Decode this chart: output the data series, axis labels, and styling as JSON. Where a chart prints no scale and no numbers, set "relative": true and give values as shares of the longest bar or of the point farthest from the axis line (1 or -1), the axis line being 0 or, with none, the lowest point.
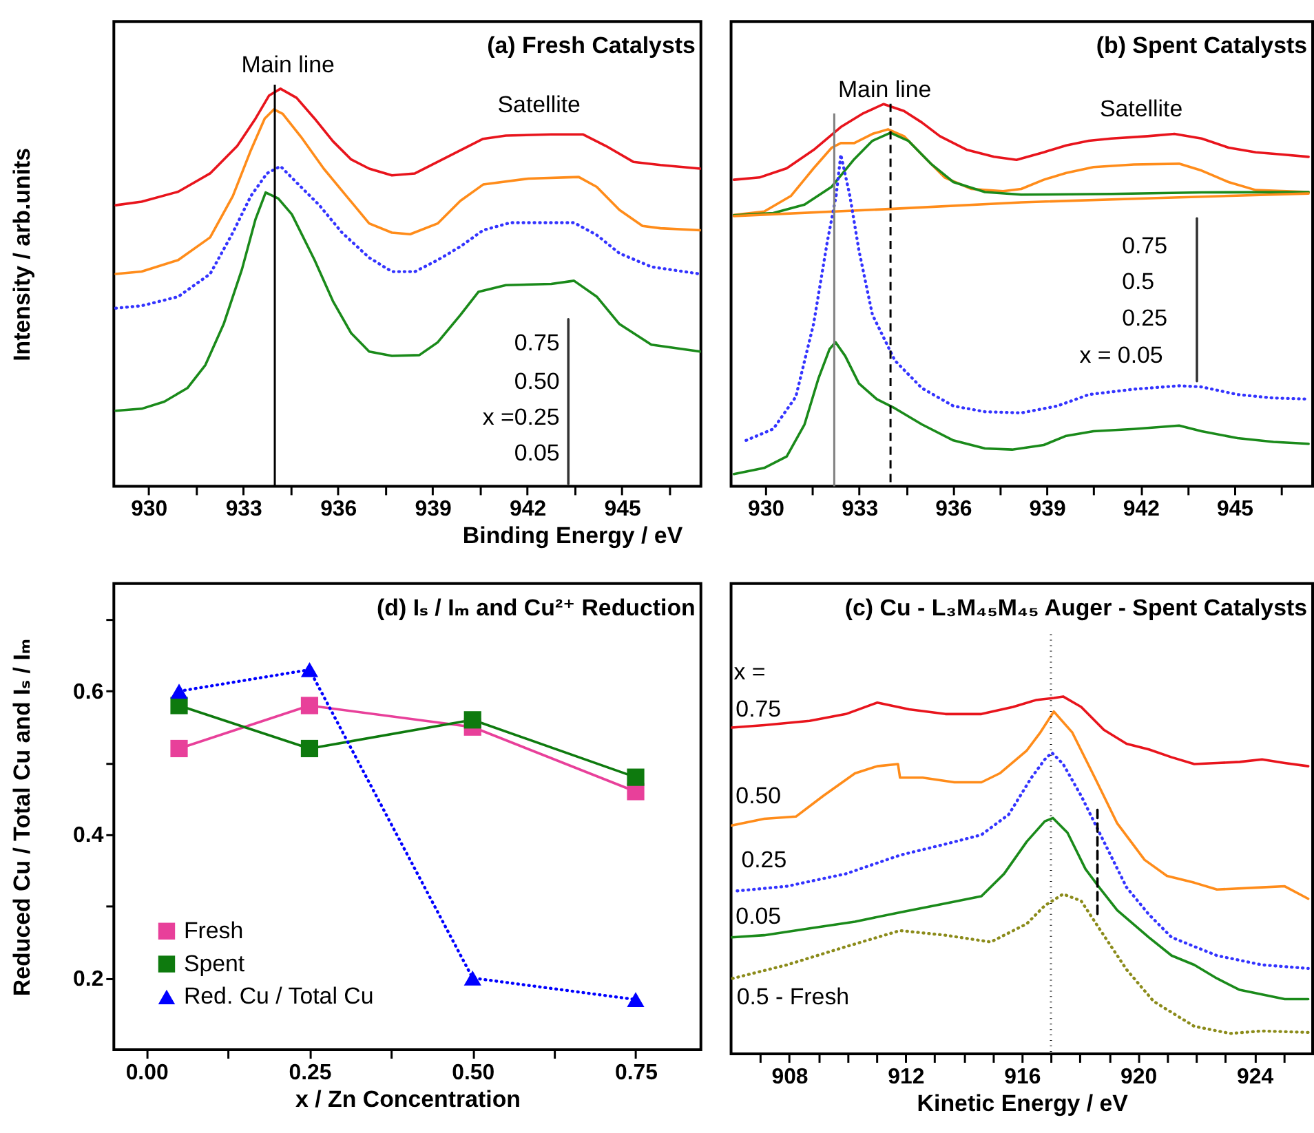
{
  "chart_data": [
    {
      "type": "line",
      "title": "(a) Fresh Catalysts",
      "xlabel": "Binding Energy / eV",
      "ylabel": "Intensity / arb.units",
      "relative": true,
      "xlim": [
        928.9,
        947.5
      ],
      "xticks": [
        930,
        {
          "value": 931.5,
          "label": null
        },
        933,
        {
          "value": 934.5,
          "label": null
        },
        936,
        {
          "value": 937.5,
          "label": null
        },
        939,
        {
          "value": 940.5,
          "label": null
        },
        942,
        {
          "value": 943.5,
          "label": null
        },
        945,
        {
          "value": 946.5,
          "label": null
        }
      ],
      "annotations": [
        "Main line",
        "Satellite",
        "0.75",
        "0.50",
        "x =0.25",
        "0.05"
      ],
      "ref_lines": [
        {
          "axis": "x",
          "value": 934,
          "color": "#000000",
          "line_style": "solid"
        }
      ],
      "series": [
        {
          "color": "#e8141c",
          "x": [
            928.96,
            929.78,
            930.94,
            931.95,
            932.81,
            933.39,
            933.82,
            934.18,
            934.69,
            935.26,
            935.84,
            936.42,
            936.99,
            937.71,
            938.44,
            939.16,
            939.88,
            940.6,
            941.32,
            942.76,
            943.77,
            944.49,
            945.36,
            946.22,
            947.48
          ],
          "values": [
            0.707,
            0.716,
            0.741,
            0.787,
            0.856,
            0.925,
            0.983,
            1.0,
            0.977,
            0.925,
            0.868,
            0.822,
            0.799,
            0.782,
            0.787,
            0.816,
            0.845,
            0.874,
            0.882,
            0.885,
            0.885,
            0.856,
            0.816,
            0.808,
            0.799
          ]
        },
        {
          "color": "#ff8c1a",
          "x": [
            928.96,
            929.78,
            930.94,
            931.95,
            932.67,
            933.24,
            933.68,
            933.97,
            934.25,
            934.83,
            935.55,
            936.27,
            936.99,
            937.71,
            938.29,
            939.16,
            939.88,
            940.6,
            942.04,
            943.63,
            944.2,
            944.92,
            945.65,
            946.22,
            947.48
          ],
          "values": [
            0.534,
            0.54,
            0.569,
            0.626,
            0.73,
            0.845,
            0.925,
            0.948,
            0.937,
            0.879,
            0.799,
            0.73,
            0.661,
            0.638,
            0.634,
            0.661,
            0.718,
            0.759,
            0.774,
            0.778,
            0.753,
            0.695,
            0.655,
            0.649,
            0.644
          ]
        },
        {
          "color": "#3333ff",
          "line_style": "dotted",
          "x": [
            928.96,
            929.78,
            930.94,
            931.95,
            932.67,
            933.24,
            933.75,
            934.18,
            934.69,
            935.41,
            936.13,
            936.99,
            937.71,
            938.44,
            939.16,
            939.88,
            940.6,
            941.46,
            943.48,
            944.2,
            944.92,
            945.93,
            947.48
          ],
          "values": [
            0.448,
            0.454,
            0.477,
            0.534,
            0.638,
            0.73,
            0.787,
            0.805,
            0.764,
            0.707,
            0.638,
            0.575,
            0.54,
            0.54,
            0.569,
            0.603,
            0.644,
            0.663,
            0.663,
            0.632,
            0.586,
            0.552,
            0.534
          ]
        },
        {
          "color": "#1a8a1a",
          "x": [
            928.96,
            929.78,
            930.5,
            931.23,
            931.8,
            932.38,
            932.96,
            933.39,
            933.71,
            934.11,
            934.54,
            935.26,
            935.84,
            936.42,
            936.99,
            937.71,
            938.58,
            939.16,
            939.88,
            940.45,
            941.32,
            942.76,
            943.48,
            944.2,
            944.92,
            945.93,
            947.48
          ],
          "values": [
            0.19,
            0.195,
            0.213,
            0.247,
            0.305,
            0.408,
            0.546,
            0.672,
            0.739,
            0.724,
            0.684,
            0.569,
            0.466,
            0.385,
            0.339,
            0.328,
            0.33,
            0.362,
            0.431,
            0.489,
            0.506,
            0.509,
            0.517,
            0.477,
            0.408,
            0.356,
            0.339
          ]
        },
        {
          "color": "#333333",
          "x": [
            943.3,
            943.3
          ],
          "values": [
            0.006,
            0.42
          ]
        }
      ]
    },
    {
      "type": "line",
      "title": "(b) Spent Catalysts",
      "relative": true,
      "xlim": [
        928.9,
        947.5
      ],
      "xticks": [
        930,
        {
          "value": 931.5,
          "label": null
        },
        933,
        {
          "value": 934.5,
          "label": null
        },
        936,
        {
          "value": 937.5,
          "label": null
        },
        939,
        {
          "value": 940.5,
          "label": null
        },
        942,
        {
          "value": 943.5,
          "label": null
        },
        945,
        {
          "value": 946.5,
          "label": null
        }
      ],
      "annotations": [
        "Main line",
        "Satellite",
        "0.75",
        "0.5",
        "0.25",
        "x = 0.05"
      ],
      "ref_lines": [
        {
          "axis": "x",
          "value": 932.2,
          "color": "#808080",
          "line_style": "solid"
        },
        {
          "axis": "x",
          "value": 934,
          "color": "#000000",
          "line_style": "dashed"
        }
      ],
      "series": [
        {
          "color": "#e8141c",
          "x": [
            928.99,
            929.81,
            930.68,
            931.54,
            932.41,
            933.13,
            933.78,
            934.43,
            935.0,
            935.58,
            936.45,
            937.31,
            938.03,
            938.9,
            939.62,
            940.34,
            941.06,
            942.22,
            943.08,
            943.95,
            944.81,
            945.68,
            946.54,
            947.37
          ],
          "values": [
            0.802,
            0.808,
            0.832,
            0.88,
            0.94,
            0.976,
            1.0,
            0.982,
            0.952,
            0.916,
            0.88,
            0.862,
            0.854,
            0.874,
            0.892,
            0.904,
            0.91,
            0.916,
            0.922,
            0.91,
            0.886,
            0.874,
            0.868,
            0.862
          ]
        },
        {
          "color": "#ff8c1a",
          "x": [
            928.99,
            929.96,
            930.82,
            931.54,
            932.12,
            932.41,
            932.84,
            933.42,
            933.92,
            934.43,
            935.0,
            935.73,
            936.59,
            937.6,
            938.18,
            938.9,
            939.62,
            940.49,
            941.78,
            943.23,
            943.95,
            944.81,
            945.68,
            947.37
          ],
          "values": [
            0.71,
            0.719,
            0.76,
            0.832,
            0.886,
            0.898,
            0.898,
            0.922,
            0.934,
            0.916,
            0.868,
            0.808,
            0.778,
            0.772,
            0.778,
            0.802,
            0.82,
            0.835,
            0.842,
            0.844,
            0.826,
            0.796,
            0.775,
            0.77
          ]
        },
        {
          "color": "#1a8a1a",
          "x": [
            928.99,
            930.25,
            931.25,
            932.12,
            932.84,
            933.42,
            934.0,
            934.57,
            935.29,
            936.01,
            937.02,
            938.18,
            941.06,
            943.95,
            947.37
          ],
          "values": [
            0.709,
            0.715,
            0.737,
            0.784,
            0.856,
            0.904,
            0.925,
            0.904,
            0.844,
            0.796,
            0.77,
            0.763,
            0.765,
            0.769,
            0.77
          ]
        },
        {
          "color": "#ff8c1a",
          "x": [
            928.99,
            933.85,
            938.18,
            942.5,
            947.37
          ],
          "values": [
            0.707,
            0.725,
            0.743,
            0.754,
            0.766
          ]
        },
        {
          "color": "#3333ff",
          "line_style": "dotted",
          "x": [
            929.38,
            930.25,
            930.97,
            931.54,
            931.98,
            932.26,
            932.41,
            932.7,
            932.99,
            933.42,
            934.14,
            935.0,
            936.01,
            937.02,
            938.18,
            939.33,
            940.34,
            941.78,
            943.23,
            943.95,
            945.1,
            946.25,
            947.37
          ],
          "values": [
            0.12,
            0.15,
            0.234,
            0.425,
            0.641,
            0.76,
            0.868,
            0.76,
            0.617,
            0.449,
            0.329,
            0.257,
            0.21,
            0.195,
            0.192,
            0.21,
            0.24,
            0.254,
            0.263,
            0.26,
            0.24,
            0.231,
            0.228
          ]
        },
        {
          "color": "#1a8a1a",
          "x": [
            928.99,
            929.96,
            930.68,
            931.25,
            931.69,
            932.05,
            932.24,
            932.55,
            932.99,
            933.56,
            934.14,
            935.0,
            936.01,
            937.02,
            937.89,
            938.9,
            939.62,
            940.49,
            941.78,
            943.23,
            943.95,
            945.1,
            946.25,
            947.37
          ],
          "values": [
            0.032,
            0.048,
            0.078,
            0.162,
            0.281,
            0.359,
            0.377,
            0.341,
            0.269,
            0.228,
            0.204,
            0.162,
            0.12,
            0.099,
            0.096,
            0.108,
            0.132,
            0.144,
            0.15,
            0.159,
            0.144,
            0.126,
            0.116,
            0.111
          ]
        },
        {
          "color": "#333333",
          "x": [
            943.8,
            943.8
          ],
          "values": [
            0.275,
            0.701
          ]
        }
      ]
    },
    {
      "type": "line",
      "title": "(d) Iₛ / Iₘ and Cu²⁺ Reduction",
      "xlabel": "x / Zn Concentration",
      "ylabel": "Reduced Cu / Total Cu and Iₛ / Iₘ",
      "legend": "bottom left",
      "xlim": [
        -0.05,
        0.85
      ],
      "ylim": [
        0.1,
        0.75
      ],
      "xticks": [
        {
          "value": 0,
          "label": "0.00"
        },
        {
          "value": 0.125,
          "label": null
        },
        0.25,
        {
          "value": 0.375,
          "label": null
        },
        {
          "value": 0.5,
          "label": "0.50"
        },
        {
          "value": 0.625,
          "label": null
        },
        0.75
      ],
      "yticks": [
        0.2,
        {
          "value": 0.3,
          "label": null
        },
        0.4,
        {
          "value": 0.5,
          "label": null
        },
        0.6,
        {
          "value": 0.7,
          "label": null
        }
      ],
      "x": [
        0.05,
        0.25,
        0.5,
        0.75
      ],
      "series": [
        {
          "name": "Fresh",
          "color": "#e8409a",
          "marker": "square",
          "values": [
            0.52,
            0.58,
            0.55,
            0.46
          ]
        },
        {
          "name": "Spent",
          "color": "#0e7a0e",
          "marker": "square",
          "values": [
            0.58,
            0.52,
            0.56,
            0.48
          ]
        },
        {
          "name": "Red. Cu / Total Cu",
          "color": "#0000ff",
          "marker": "triangle",
          "line_style": "dotted",
          "values": [
            0.6,
            0.63,
            0.2,
            0.17
          ]
        }
      ]
    },
    {
      "type": "line",
      "title": "(c) Cu - L₃M₄₅M₄₅ Auger - Spent Catalysts",
      "xlabel": "Kinetic Energy / eV",
      "relative": true,
      "xlim": [
        906,
        926
      ],
      "xticks": [
        {
          "value": 907,
          "label": null
        },
        908,
        {
          "value": 909,
          "label": null
        },
        {
          "value": 910,
          "label": null
        },
        {
          "value": 911,
          "label": null
        },
        912,
        {
          "value": 913,
          "label": null
        },
        {
          "value": 914,
          "label": null
        },
        {
          "value": 915,
          "label": null
        },
        916,
        {
          "value": 917,
          "label": null
        },
        {
          "value": 918,
          "label": null
        },
        {
          "value": 919,
          "label": null
        },
        920,
        {
          "value": 921,
          "label": null
        },
        {
          "value": 922,
          "label": null
        },
        {
          "value": 923,
          "label": null
        },
        924,
        {
          "value": 925,
          "label": null
        }
      ],
      "annotations": [
        "x ="
      ],
      "ref_lines": [
        {
          "axis": "x",
          "value": 917,
          "color": "#000000",
          "line_style": "dotted"
        }
      ],
      "series": [
        {
          "name": "0.75",
          "color": "#e8141c",
          "x": [
            906.02,
            907.14,
            908.7,
            909.95,
            911.03,
            912.12,
            913.37,
            914.61,
            915.7,
            916.48,
            917.1,
            917.42,
            918.04,
            918.82,
            919.6,
            920.37,
            921.15,
            921.93,
            922.71,
            923.49,
            924.26,
            925.04,
            925.85
          ],
          "values": [
            0.913,
            0.92,
            0.932,
            0.951,
            0.983,
            0.964,
            0.951,
            0.951,
            0.971,
            0.99,
            0.996,
            1.0,
            0.971,
            0.907,
            0.868,
            0.852,
            0.83,
            0.811,
            0.814,
            0.817,
            0.824,
            0.814,
            0.805
          ]
        },
        {
          "name": "0.50",
          "color": "#ff8c1a",
          "x": [
            906.02,
            907.14,
            908.23,
            909.17,
            910.26,
            911.03,
            911.74,
            911.81,
            912.59,
            913.68,
            914.61,
            915.24,
            916.17,
            916.64,
            917.1,
            917.73,
            918.51,
            919.28,
            920.22,
            920.99,
            921.93,
            922.71,
            924.26,
            925.04,
            925.85
          ],
          "values": [
            0.639,
            0.658,
            0.664,
            0.722,
            0.785,
            0.805,
            0.811,
            0.773,
            0.773,
            0.76,
            0.76,
            0.785,
            0.849,
            0.9,
            0.958,
            0.9,
            0.773,
            0.645,
            0.543,
            0.498,
            0.479,
            0.46,
            0.466,
            0.469,
            0.434
          ]
        },
        {
          "name": "0.25",
          "color": "#3333ff",
          "line_style": "dotted",
          "x": [
            906.21,
            907.92,
            909.95,
            911.81,
            913.37,
            914.61,
            915.55,
            916.33,
            916.79,
            917.03,
            917.42,
            918.04,
            918.82,
            919.6,
            920.37,
            921.15,
            922.71,
            924.26,
            925.85
          ],
          "values": [
            0.456,
            0.469,
            0.504,
            0.556,
            0.587,
            0.613,
            0.67,
            0.773,
            0.824,
            0.843,
            0.811,
            0.722,
            0.594,
            0.466,
            0.39,
            0.326,
            0.275,
            0.249,
            0.239
          ]
        },
        {
          "name": "0.05",
          "color": "#1a8a1a",
          "x": [
            906.02,
            907.14,
            908.7,
            910.26,
            911.81,
            913.37,
            914.61,
            915.39,
            916.17,
            916.79,
            917.07,
            917.57,
            918.19,
            918.66,
            919.28,
            920.37,
            921.15,
            921.93,
            922.71,
            923.49,
            925.04,
            925.85
          ],
          "values": [
            0.326,
            0.332,
            0.351,
            0.37,
            0.396,
            0.421,
            0.441,
            0.504,
            0.594,
            0.651,
            0.66,
            0.619,
            0.517,
            0.466,
            0.402,
            0.326,
            0.275,
            0.249,
            0.211,
            0.179,
            0.153,
            0.153
          ]
        },
        {
          "name": "0.5 - Fresh",
          "color": "#8b8b1a",
          "line_style": "dotted",
          "x": [
            906.05,
            907.92,
            909.95,
            911.81,
            913.37,
            914.93,
            916.17,
            916.79,
            917.42,
            918.04,
            918.66,
            919.6,
            920.53,
            921.93,
            923.17,
            924.26,
            925.85
          ],
          "values": [
            0.211,
            0.249,
            0.3,
            0.345,
            0.332,
            0.313,
            0.364,
            0.415,
            0.447,
            0.428,
            0.351,
            0.236,
            0.147,
            0.077,
            0.057,
            0.064,
            0.06
          ]
        },
        {
          "color": "#000000",
          "line_style": "dashed",
          "x": [
            918.6,
            918.6
          ],
          "values": [
            0.683,
            0.383
          ]
        }
      ]
    }
  ]
}
